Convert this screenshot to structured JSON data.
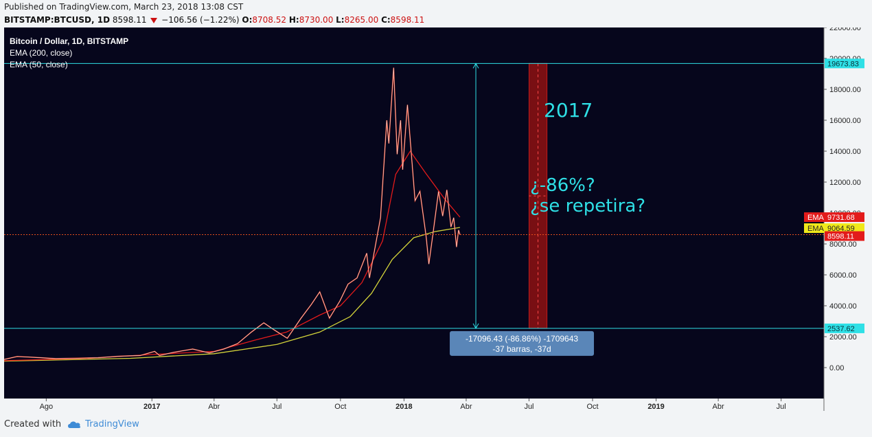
{
  "header": {
    "published": "Published on TradingView.com, March 23, 2018 13:08 CST",
    "symbol": "BITSTAMP:BTCUSD, 1D",
    "last": "8598.11",
    "change": "−106.56 (−1.22%)",
    "o_label": "O:",
    "o_value": "8708.52",
    "h_label": "H:",
    "h_value": "8730.00",
    "l_label": "L:",
    "l_value": "8265.00",
    "c_label": "C:",
    "c_value": "8598.11"
  },
  "legend": {
    "title": "Bitcoin / Dollar, 1D, BITSTAMP",
    "ema200": "EMA (200, close)",
    "ema50": "EMA (50, close)"
  },
  "annotations": {
    "year_text": "2017",
    "question_line1": "¿-86%?",
    "question_line2": "¿se repetira?",
    "measure_line1": "-17096.43 (-86.86%) -1709643",
    "measure_line2": "-37 barras, -37d"
  },
  "footer": {
    "created_with": "Created with",
    "brand": "TradingView"
  },
  "colors": {
    "background": "#06061c",
    "price_line": "#e03a1e",
    "ema50": "#e31b1b",
    "ema200": "#d4d43a",
    "cyan": "#2fe0e6",
    "measure_box": "#5a86b8",
    "red_zone": "#8e1212"
  },
  "chart_data": {
    "type": "candlestick",
    "title": "Bitcoin / Dollar, 1D, BITSTAMP",
    "ylim": [
      -2000,
      22000
    ],
    "y_ticks": [
      "22000.00",
      "20000.00",
      "18000.00",
      "16000.00",
      "14000.00",
      "12000.00",
      "10000.00",
      "8000.00",
      "6000.00",
      "4000.00",
      "2000.00",
      "0.00"
    ],
    "y_tick_values": [
      22000,
      20000,
      18000,
      16000,
      14000,
      12000,
      10000,
      8000,
      6000,
      4000,
      2000,
      0
    ],
    "x_range": [
      "2016-06-01",
      "2019-09-01"
    ],
    "x_ticks": [
      {
        "date": "2016-08-01",
        "label": "Ago",
        "bold": false
      },
      {
        "date": "2017-01-01",
        "label": "2017",
        "bold": true
      },
      {
        "date": "2017-04-01",
        "label": "Abr",
        "bold": false
      },
      {
        "date": "2017-07-01",
        "label": "Jul",
        "bold": false
      },
      {
        "date": "2017-10-01",
        "label": "Oct",
        "bold": false
      },
      {
        "date": "2018-01-01",
        "label": "2018",
        "bold": true
      },
      {
        "date": "2018-04-01",
        "label": "Abr",
        "bold": false
      },
      {
        "date": "2018-07-01",
        "label": "Jul",
        "bold": false
      },
      {
        "date": "2018-10-01",
        "label": "Oct",
        "bold": false
      },
      {
        "date": "2019-01-01",
        "label": "2019",
        "bold": true
      },
      {
        "date": "2019-04-01",
        "label": "Abr",
        "bold": false
      },
      {
        "date": "2019-07-01",
        "label": "Jul",
        "bold": false
      }
    ],
    "price_series": [
      [
        "2016-06-01",
        530
      ],
      [
        "2016-06-20",
        720
      ],
      [
        "2016-07-15",
        660
      ],
      [
        "2016-08-15",
        580
      ],
      [
        "2016-09-15",
        610
      ],
      [
        "2016-10-15",
        640
      ],
      [
        "2016-11-15",
        740
      ],
      [
        "2016-12-15",
        780
      ],
      [
        "2017-01-05",
        1050
      ],
      [
        "2017-01-12",
        780
      ],
      [
        "2017-02-01",
        980
      ],
      [
        "2017-03-01",
        1200
      ],
      [
        "2017-03-25",
        950
      ],
      [
        "2017-04-15",
        1200
      ],
      [
        "2017-05-05",
        1550
      ],
      [
        "2017-05-25",
        2300
      ],
      [
        "2017-06-12",
        2900
      ],
      [
        "2017-06-25",
        2500
      ],
      [
        "2017-07-16",
        1900
      ],
      [
        "2017-08-05",
        3200
      ],
      [
        "2017-08-20",
        4100
      ],
      [
        "2017-09-01",
        4900
      ],
      [
        "2017-09-15",
        3200
      ],
      [
        "2017-09-30",
        4300
      ],
      [
        "2017-10-12",
        5400
      ],
      [
        "2017-10-25",
        5800
      ],
      [
        "2017-11-08",
        7400
      ],
      [
        "2017-11-12",
        5800
      ],
      [
        "2017-11-28",
        9700
      ],
      [
        "2017-12-07",
        16000
      ],
      [
        "2017-12-10",
        14500
      ],
      [
        "2017-12-17",
        19400
      ],
      [
        "2017-12-22",
        13800
      ],
      [
        "2017-12-27",
        16000
      ],
      [
        "2017-12-30",
        12800
      ],
      [
        "2018-01-06",
        17000
      ],
      [
        "2018-01-17",
        10800
      ],
      [
        "2018-01-24",
        11400
      ],
      [
        "2018-02-02",
        8500
      ],
      [
        "2018-02-06",
        6700
      ],
      [
        "2018-02-12",
        8700
      ],
      [
        "2018-02-20",
        11400
      ],
      [
        "2018-02-26",
        9800
      ],
      [
        "2018-03-04",
        11500
      ],
      [
        "2018-03-10",
        9100
      ],
      [
        "2018-03-14",
        9700
      ],
      [
        "2018-03-18",
        7800
      ],
      [
        "2018-03-21",
        8900
      ],
      [
        "2018-03-23",
        8598
      ]
    ],
    "ema50": [
      [
        "2016-06-01",
        450
      ],
      [
        "2016-10-01",
        600
      ],
      [
        "2017-01-01",
        850
      ],
      [
        "2017-04-01",
        1050
      ],
      [
        "2017-06-01",
        1800
      ],
      [
        "2017-07-15",
        2300
      ],
      [
        "2017-09-01",
        3400
      ],
      [
        "2017-10-01",
        4000
      ],
      [
        "2017-11-01",
        5500
      ],
      [
        "2017-12-01",
        8200
      ],
      [
        "2017-12-20",
        12500
      ],
      [
        "2018-01-10",
        14000
      ],
      [
        "2018-02-01",
        12600
      ],
      [
        "2018-03-01",
        10900
      ],
      [
        "2018-03-23",
        9731.68
      ]
    ],
    "ema200": [
      [
        "2016-06-01",
        420
      ],
      [
        "2016-12-01",
        600
      ],
      [
        "2017-04-01",
        900
      ],
      [
        "2017-07-01",
        1500
      ],
      [
        "2017-09-01",
        2300
      ],
      [
        "2017-10-15",
        3300
      ],
      [
        "2017-11-15",
        4800
      ],
      [
        "2017-12-15",
        7000
      ],
      [
        "2018-01-15",
        8400
      ],
      [
        "2018-02-15",
        8800
      ],
      [
        "2018-03-23",
        9064.59
      ]
    ],
    "levels": {
      "top": 19673.83,
      "bottom": 2537.62,
      "last_price": 8598.11,
      "ema50_last": 9731.68,
      "ema200_last": 9064.59
    },
    "price_labels": {
      "top": "19673.83",
      "bottom": "2537.62",
      "last": "8598.11",
      "ema50_tag": "EMA",
      "ema50_value": "9731.68",
      "ema200_tag": "EMA",
      "ema200_value": "9064.59"
    },
    "measure_dates": [
      "2018-04-15",
      "2018-05-22"
    ],
    "red_zone_dates": [
      "2018-07-01",
      "2018-07-27"
    ]
  }
}
